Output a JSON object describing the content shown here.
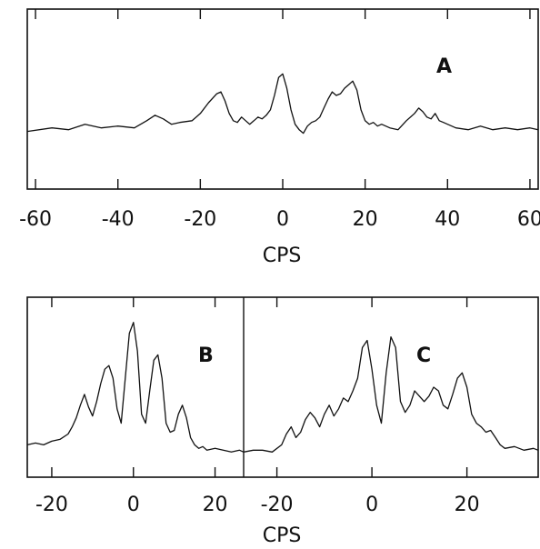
{
  "chart_data": [
    {
      "type": "line",
      "panel": "A",
      "label": "A",
      "xlabel": "CPS",
      "xlim": [
        -62,
        62
      ],
      "ylim": [
        0,
        1
      ],
      "ticks": [
        -60,
        -40,
        -20,
        0,
        20,
        40,
        60
      ],
      "tick_labels": [
        "-60",
        "-40",
        "-20",
        "0",
        "20",
        "40",
        "60"
      ],
      "series": [
        {
          "x": [
            -62,
            -56,
            -52,
            -48,
            -44,
            -40,
            -36,
            -33,
            -31,
            -29,
            -27,
            -25,
            -22,
            -20,
            -18,
            -16,
            -15,
            -14,
            -13,
            -12,
            -11,
            -10,
            -9,
            -8,
            -7,
            -6,
            -5,
            -4,
            -3,
            -2,
            -1,
            0,
            1,
            2,
            3,
            4,
            5,
            6,
            7,
            8,
            9,
            10,
            11,
            12,
            13,
            14,
            15,
            16,
            17,
            18,
            19,
            20,
            21,
            22,
            23,
            24,
            26,
            28,
            30,
            32,
            33,
            34,
            35,
            36,
            37,
            38,
            39,
            40,
            42,
            45,
            48,
            51,
            54,
            57,
            60,
            62
          ],
          "y": [
            0.32,
            0.34,
            0.33,
            0.36,
            0.34,
            0.35,
            0.34,
            0.38,
            0.41,
            0.39,
            0.36,
            0.37,
            0.38,
            0.42,
            0.48,
            0.53,
            0.54,
            0.49,
            0.42,
            0.38,
            0.37,
            0.4,
            0.38,
            0.36,
            0.38,
            0.4,
            0.39,
            0.41,
            0.44,
            0.52,
            0.62,
            0.64,
            0.56,
            0.44,
            0.36,
            0.33,
            0.31,
            0.35,
            0.37,
            0.38,
            0.4,
            0.45,
            0.5,
            0.54,
            0.52,
            0.53,
            0.56,
            0.58,
            0.6,
            0.55,
            0.44,
            0.38,
            0.36,
            0.37,
            0.35,
            0.36,
            0.34,
            0.33,
            0.38,
            0.42,
            0.45,
            0.43,
            0.4,
            0.39,
            0.42,
            0.38,
            0.37,
            0.36,
            0.34,
            0.33,
            0.35,
            0.33,
            0.34,
            0.33,
            0.34,
            0.33
          ]
        }
      ]
    },
    {
      "type": "line",
      "panel": "B",
      "label": "B",
      "xlabel": "CPS",
      "xlim": [
        -26,
        27
      ],
      "ylim": [
        0,
        1
      ],
      "ticks": [
        -20,
        0,
        20
      ],
      "tick_labels": [
        "-20",
        "0",
        "20"
      ],
      "series": [
        {
          "x": [
            -26,
            -24,
            -22,
            -20,
            -18,
            -16,
            -15,
            -14,
            -13,
            -12,
            -11,
            -10,
            -9,
            -8,
            -7,
            -6,
            -5,
            -4,
            -3,
            -2,
            -1,
            0,
            1,
            2,
            3,
            4,
            5,
            6,
            7,
            8,
            9,
            10,
            11,
            12,
            13,
            14,
            15,
            16,
            17,
            18,
            20,
            22,
            24,
            26,
            27
          ],
          "y": [
            0.18,
            0.19,
            0.18,
            0.2,
            0.21,
            0.24,
            0.28,
            0.33,
            0.4,
            0.46,
            0.39,
            0.34,
            0.42,
            0.52,
            0.6,
            0.62,
            0.55,
            0.38,
            0.3,
            0.55,
            0.8,
            0.86,
            0.7,
            0.35,
            0.3,
            0.48,
            0.65,
            0.68,
            0.55,
            0.3,
            0.25,
            0.26,
            0.35,
            0.4,
            0.33,
            0.22,
            0.18,
            0.16,
            0.17,
            0.15,
            0.16,
            0.15,
            0.14,
            0.15,
            0.14
          ]
        }
      ]
    },
    {
      "type": "line",
      "panel": "C",
      "label": "C",
      "xlabel": "CPS",
      "xlim": [
        -27,
        35
      ],
      "ylim": [
        0,
        1
      ],
      "ticks": [
        -20,
        0,
        20
      ],
      "tick_labels": [
        "-20",
        "0",
        "20"
      ],
      "series": [
        {
          "x": [
            -27,
            -25,
            -23,
            -21,
            -19,
            -18,
            -17,
            -16,
            -15,
            -14,
            -13,
            -12,
            -11,
            -10,
            -9,
            -8,
            -7,
            -6,
            -5,
            -4,
            -3,
            -2,
            -1,
            0,
            1,
            2,
            3,
            4,
            5,
            6,
            7,
            8,
            9,
            10,
            11,
            12,
            13,
            14,
            15,
            16,
            17,
            18,
            19,
            20,
            21,
            22,
            23,
            24,
            25,
            26,
            27,
            28,
            30,
            32,
            34,
            35
          ],
          "y": [
            0.14,
            0.15,
            0.15,
            0.14,
            0.18,
            0.24,
            0.28,
            0.22,
            0.25,
            0.32,
            0.36,
            0.33,
            0.28,
            0.35,
            0.4,
            0.34,
            0.38,
            0.44,
            0.42,
            0.48,
            0.55,
            0.72,
            0.76,
            0.6,
            0.4,
            0.3,
            0.58,
            0.78,
            0.72,
            0.42,
            0.36,
            0.4,
            0.48,
            0.45,
            0.42,
            0.45,
            0.5,
            0.48,
            0.4,
            0.38,
            0.46,
            0.55,
            0.58,
            0.5,
            0.35,
            0.3,
            0.28,
            0.25,
            0.26,
            0.22,
            0.18,
            0.16,
            0.17,
            0.15,
            0.16,
            0.15
          ]
        }
      ]
    }
  ]
}
